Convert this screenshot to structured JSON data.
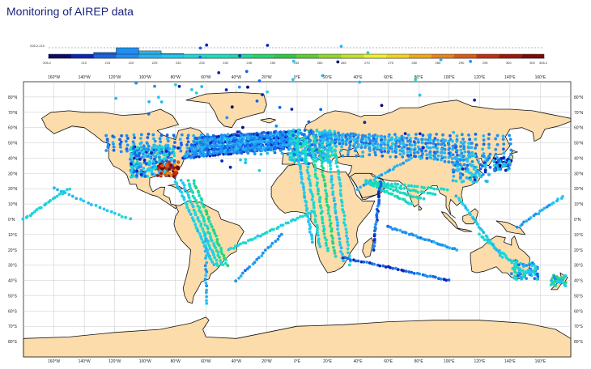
{
  "title": "Monitoring of AIREP data",
  "legend": {
    "min_label": "206.2",
    "max_label": "306.2",
    "count_min_label": "206.2-210",
    "tick_labels": [
      "210",
      "215",
      "220",
      "225",
      "230",
      "235",
      "240",
      "245",
      "250",
      "255",
      "260",
      "265",
      "270",
      "275",
      "280",
      "285",
      "290",
      "295",
      "300",
      "305"
    ],
    "colors": [
      "#0a0a6e",
      "#0b24b8",
      "#1565e8",
      "#1e8ff2",
      "#27b4f0",
      "#20c8f5",
      "#1ed6d8",
      "#19dcc0",
      "#20d89c",
      "#27d46a",
      "#2ec844",
      "#5bcf2c",
      "#8fd82a",
      "#c2e22c",
      "#f0f02a",
      "#f5d21c",
      "#f0a818",
      "#e88218",
      "#d85a14",
      "#c03010",
      "#a0150c",
      "#7a0a08"
    ],
    "bar_heights_fraction": [
      0.05,
      0.35,
      0.55,
      1.0,
      0.7,
      0.45,
      0.25,
      0.12,
      0.08,
      0.06,
      0.05,
      0.04,
      0.05,
      0.06,
      0.05,
      0.06,
      0.08,
      0.12,
      0.18,
      0.1,
      0.06,
      0.05
    ]
  },
  "map": {
    "lon_labels": [
      "160°W",
      "140°W",
      "120°W",
      "100°W",
      "80°W",
      "60°W",
      "40°W",
      "20°W",
      "0°E",
      "20°E",
      "40°E",
      "60°E",
      "80°E",
      "100°E",
      "120°E",
      "140°E",
      "160°E"
    ],
    "lat_labels": [
      "80°N",
      "70°N",
      "60°N",
      "50°N",
      "40°N",
      "30°N",
      "20°N",
      "10°N",
      "0°N",
      "10°S",
      "20°S",
      "30°S",
      "40°S",
      "50°S",
      "60°S",
      "70°S",
      "80°S"
    ],
    "ocean_color": "#ffffff",
    "land_color": "#fbdcaa",
    "coast_color": "#111111",
    "grid_color": "#c8c8c8"
  }
}
